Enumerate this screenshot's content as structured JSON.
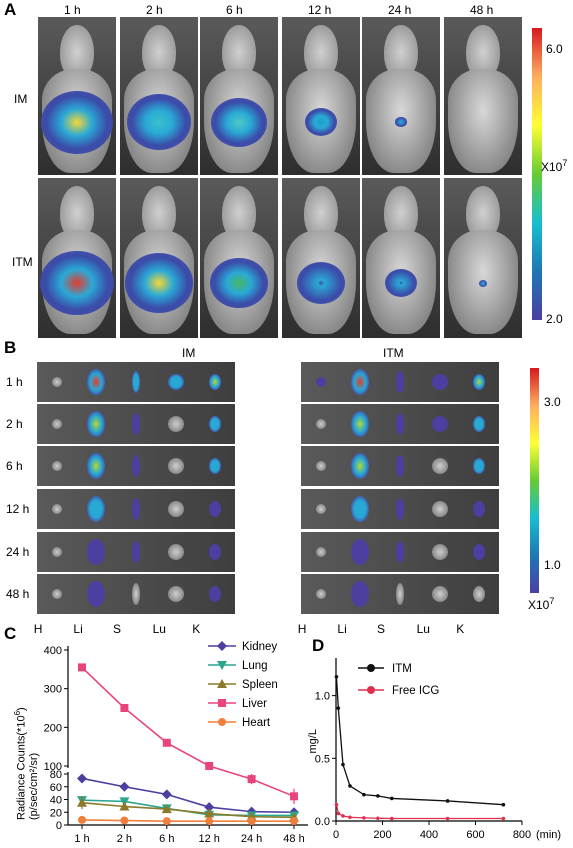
{
  "panelA": {
    "letter": "A",
    "times": [
      "1 h",
      "2 h",
      "6 h",
      "12 h",
      "24 h",
      "48 h"
    ],
    "rows": [
      "IM",
      "ITM"
    ],
    "colorbar": {
      "max": "6.0",
      "min": "2.0",
      "unit": "X10",
      "exp": "7"
    }
  },
  "panelB": {
    "letter": "B",
    "groups": [
      "IM",
      "ITM"
    ],
    "times": [
      "1 h",
      "2 h",
      "6 h",
      "12 h",
      "24 h",
      "48 h"
    ],
    "organs": [
      "H",
      "Li",
      "S",
      "Lu",
      "K"
    ],
    "colorbar": {
      "max": "3.0",
      "min": "1.0",
      "unit": "X10",
      "exp": "7"
    }
  },
  "panelC": {
    "letter": "C",
    "ylabel_line1": "Radiance Counts(*10",
    "ylabel_exp": "6",
    "ylabel_close": ")",
    "ylabel_line2": "(p/sec/cm²/sr)"
  },
  "panelD": {
    "letter": "D"
  },
  "chart_data": [
    {
      "type": "line",
      "categories": [
        "1 h",
        "2 h",
        "6 h",
        "12 h",
        "24 h",
        "48 h"
      ],
      "series": [
        {
          "name": "Kidney",
          "color": "#4b3fa0",
          "marker": "diamond",
          "values": [
            73,
            60,
            48,
            28,
            21,
            20
          ]
        },
        {
          "name": "Lung",
          "color": "#2ca58d",
          "marker": "triangle-down",
          "values": [
            39,
            37,
            26,
            16,
            15,
            15
          ]
        },
        {
          "name": "Spleen",
          "color": "#8a7a2a",
          "marker": "triangle-up",
          "values": [
            35,
            29,
            25,
            18,
            13,
            12
          ]
        },
        {
          "name": "Liver",
          "color": "#e8457a",
          "marker": "square",
          "values": [
            355,
            250,
            160,
            100,
            72,
            45
          ]
        },
        {
          "name": "Heart",
          "color": "#f07f3c",
          "marker": "circle",
          "values": [
            8,
            7,
            6,
            6,
            6,
            6
          ]
        }
      ],
      "yticks": [
        "0",
        "20",
        "40",
        "60",
        "80",
        "100",
        "200",
        "300",
        "400"
      ],
      "ylim": [
        0,
        400
      ],
      "y_axis_break": [
        80,
        100
      ],
      "legend": "top-right"
    },
    {
      "type": "line",
      "xlabel": "(min)",
      "ylabel": "mg/L",
      "xlim": [
        0,
        800
      ],
      "ylim": [
        0,
        1.3
      ],
      "xticks": [
        "0",
        "200",
        "400",
        "600",
        "800"
      ],
      "yticks": [
        "0.0",
        "0.5",
        "1.0"
      ],
      "series": [
        {
          "name": "ITM",
          "color": "#111111",
          "x": [
            2,
            10,
            30,
            60,
            120,
            180,
            240,
            480,
            720
          ],
          "values": [
            1.15,
            0.9,
            0.45,
            0.28,
            0.21,
            0.2,
            0.18,
            0.16,
            0.13
          ]
        },
        {
          "name": "Free ICG",
          "color": "#e0304e",
          "x": [
            2,
            10,
            30,
            60,
            120,
            180,
            240,
            480,
            720
          ],
          "values": [
            0.13,
            0.06,
            0.04,
            0.03,
            0.025,
            0.022,
            0.02,
            0.02,
            0.02
          ]
        }
      ],
      "legend": "top-right"
    }
  ]
}
